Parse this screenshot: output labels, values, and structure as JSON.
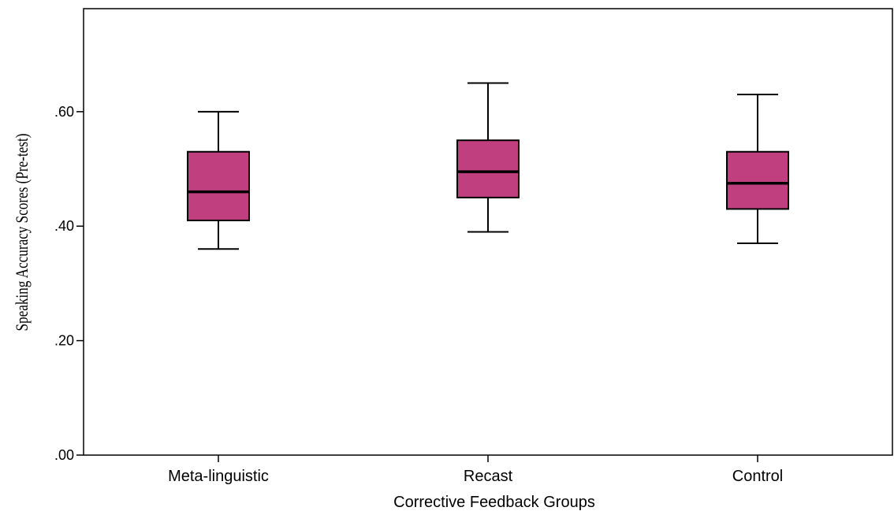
{
  "chart_data": {
    "type": "boxplot",
    "title": "",
    "xlabel": "Corrective Feedback Groups",
    "ylabel": "Speaking Accuracy Scores (Pre-test)",
    "ylim": [
      0,
      0.78
    ],
    "yticks": [
      0,
      0.2,
      0.4,
      0.6
    ],
    "ytick_labels": [
      ".00",
      ".20",
      ".40",
      ".60"
    ],
    "grid": false,
    "box_color": "#bf3f7f",
    "categories": [
      "Meta-linguistic",
      "Recast",
      "Control"
    ],
    "boxes": [
      {
        "category": "Meta-linguistic",
        "min": 0.36,
        "q1": 0.41,
        "median": 0.46,
        "q3": 0.53,
        "max": 0.6
      },
      {
        "category": "Recast",
        "min": 0.39,
        "q1": 0.45,
        "median": 0.495,
        "q3": 0.55,
        "max": 0.65
      },
      {
        "category": "Control",
        "min": 0.37,
        "q1": 0.43,
        "median": 0.475,
        "q3": 0.53,
        "max": 0.63
      }
    ]
  }
}
